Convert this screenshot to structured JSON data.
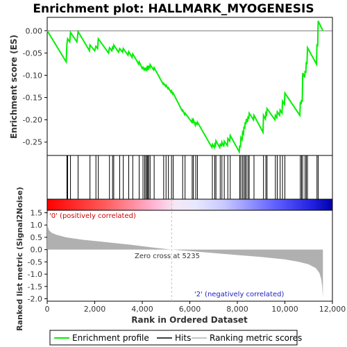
{
  "chart_data": {
    "type": "line",
    "title": "Enrichment plot: HALLMARK_MYOGENESIS",
    "xlabel": "Rank in Ordered Dataset",
    "ylabel_top": "Enrichment score (ES)",
    "ylabel_bottom": "Ranked list metric (Signal2Noise)",
    "xlim": [
      0,
      12000
    ],
    "x_ticks": [
      0,
      2000,
      4000,
      6000,
      8000,
      10000,
      12000
    ],
    "x_tick_labels": [
      "0",
      "2,000",
      "4,000",
      "6,000",
      "8,000",
      "10,000",
      "12,000"
    ],
    "es_ylim": [
      -0.28,
      0.03
    ],
    "es_ticks": [
      0.0,
      -0.05,
      -0.1,
      -0.15,
      -0.2,
      -0.25
    ],
    "es_tick_labels": [
      "0.00",
      "-0.05",
      "-0.10",
      "-0.15",
      "-0.20",
      "-0.25"
    ],
    "metric_ylim": [
      -2.1,
      1.6
    ],
    "metric_ticks": [
      1.5,
      1.0,
      0.5,
      0.0,
      -0.5,
      -1.0,
      -1.5,
      -2.0
    ],
    "metric_tick_labels": [
      "1.5",
      "1.0",
      "0.5",
      "0.0",
      "-0.5",
      "-1.0",
      "-1.5",
      "-2.0"
    ],
    "total_genes": 11600,
    "zero_cross": 5235,
    "annotations": {
      "positive": "'0' (positively correlated)",
      "negative": "'2' (negatively correlated)",
      "zero_cross": "Zero cross at 5235"
    },
    "hits": [
      830,
      860,
      980,
      1300,
      1800,
      2050,
      2150,
      2620,
      2750,
      2800,
      3050,
      3200,
      3430,
      3600,
      3870,
      4030,
      4100,
      4150,
      4200,
      4230,
      4270,
      4330,
      4500,
      4900,
      5000,
      5100,
      5230,
      5300,
      5700,
      5800,
      6100,
      6150,
      6250,
      6320,
      6950,
      7050,
      7100,
      7280,
      7350,
      7450,
      7600,
      7700,
      8100,
      8150,
      8220,
      8280,
      8330,
      8380,
      8450,
      8500,
      8700,
      9100,
      9200,
      9250,
      9600,
      9680,
      9800,
      9900,
      10000,
      10650,
      10700,
      10750,
      10850,
      10900,
      10950,
      11350,
      11400
    ],
    "es_curve": [
      [
        0,
        0.0
      ],
      [
        800,
        -0.07
      ],
      [
        830,
        -0.03
      ],
      [
        860,
        -0.018
      ],
      [
        950,
        -0.025
      ],
      [
        980,
        -0.004
      ],
      [
        1250,
        -0.025
      ],
      [
        1300,
        -0.002
      ],
      [
        1780,
        -0.045
      ],
      [
        1800,
        -0.032
      ],
      [
        2000,
        -0.045
      ],
      [
        2050,
        -0.035
      ],
      [
        2120,
        -0.04
      ],
      [
        2150,
        -0.018
      ],
      [
        2580,
        -0.05
      ],
      [
        2620,
        -0.038
      ],
      [
        2720,
        -0.045
      ],
      [
        2750,
        -0.035
      ],
      [
        2780,
        -0.042
      ],
      [
        2800,
        -0.032
      ],
      [
        3000,
        -0.048
      ],
      [
        3050,
        -0.04
      ],
      [
        3170,
        -0.048
      ],
      [
        3200,
        -0.04
      ],
      [
        3400,
        -0.055
      ],
      [
        3430,
        -0.047
      ],
      [
        3570,
        -0.06
      ],
      [
        3600,
        -0.052
      ],
      [
        3850,
        -0.075
      ],
      [
        3870,
        -0.07
      ],
      [
        4000,
        -0.085
      ],
      [
        4030,
        -0.082
      ],
      [
        4080,
        -0.088
      ],
      [
        4100,
        -0.085
      ],
      [
        4140,
        -0.088
      ],
      [
        4150,
        -0.085
      ],
      [
        4190,
        -0.088
      ],
      [
        4200,
        -0.083
      ],
      [
        4220,
        -0.085
      ],
      [
        4230,
        -0.082
      ],
      [
        4260,
        -0.085
      ],
      [
        4270,
        -0.08
      ],
      [
        4320,
        -0.083
      ],
      [
        4330,
        -0.076
      ],
      [
        4480,
        -0.088
      ],
      [
        4500,
        -0.083
      ],
      [
        4880,
        -0.12
      ],
      [
        4900,
        -0.118
      ],
      [
        4980,
        -0.125
      ],
      [
        5000,
        -0.122
      ],
      [
        5080,
        -0.13
      ],
      [
        5100,
        -0.128
      ],
      [
        5210,
        -0.138
      ],
      [
        5230,
        -0.135
      ],
      [
        5280,
        -0.142
      ],
      [
        5300,
        -0.14
      ],
      [
        5680,
        -0.18
      ],
      [
        5700,
        -0.178
      ],
      [
        5780,
        -0.188
      ],
      [
        5800,
        -0.185
      ],
      [
        6080,
        -0.205
      ],
      [
        6100,
        -0.2
      ],
      [
        6130,
        -0.205
      ],
      [
        6150,
        -0.2
      ],
      [
        6230,
        -0.212
      ],
      [
        6250,
        -0.207
      ],
      [
        6300,
        -0.21
      ],
      [
        6320,
        -0.205
      ],
      [
        6930,
        -0.262
      ],
      [
        6950,
        -0.255
      ],
      [
        7030,
        -0.262
      ],
      [
        7050,
        -0.255
      ],
      [
        7080,
        -0.258
      ],
      [
        7100,
        -0.247
      ],
      [
        7260,
        -0.262
      ],
      [
        7280,
        -0.255
      ],
      [
        7330,
        -0.258
      ],
      [
        7350,
        -0.25
      ],
      [
        7430,
        -0.26
      ],
      [
        7450,
        -0.248
      ],
      [
        7580,
        -0.258
      ],
      [
        7600,
        -0.242
      ],
      [
        7680,
        -0.248
      ],
      [
        7700,
        -0.235
      ],
      [
        8080,
        -0.272
      ],
      [
        8100,
        -0.258
      ],
      [
        8130,
        -0.262
      ],
      [
        8150,
        -0.24
      ],
      [
        8200,
        -0.245
      ],
      [
        8220,
        -0.228
      ],
      [
        8260,
        -0.232
      ],
      [
        8280,
        -0.215
      ],
      [
        8310,
        -0.22
      ],
      [
        8330,
        -0.205
      ],
      [
        8360,
        -0.21
      ],
      [
        8380,
        -0.198
      ],
      [
        8430,
        -0.205
      ],
      [
        8450,
        -0.192
      ],
      [
        8480,
        -0.198
      ],
      [
        8500,
        -0.185
      ],
      [
        8680,
        -0.2
      ],
      [
        8700,
        -0.19
      ],
      [
        9080,
        -0.228
      ],
      [
        9100,
        -0.19
      ],
      [
        9180,
        -0.198
      ],
      [
        9200,
        -0.185
      ],
      [
        9230,
        -0.188
      ],
      [
        9250,
        -0.175
      ],
      [
        9580,
        -0.2
      ],
      [
        9600,
        -0.19
      ],
      [
        9660,
        -0.195
      ],
      [
        9680,
        -0.182
      ],
      [
        9780,
        -0.19
      ],
      [
        9800,
        -0.178
      ],
      [
        9880,
        -0.185
      ],
      [
        9900,
        -0.158
      ],
      [
        9980,
        -0.165
      ],
      [
        10000,
        -0.14
      ],
      [
        10630,
        -0.19
      ],
      [
        10650,
        -0.16
      ],
      [
        10680,
        -0.165
      ],
      [
        10700,
        -0.155
      ],
      [
        10730,
        -0.16
      ],
      [
        10750,
        -0.095
      ],
      [
        10830,
        -0.105
      ],
      [
        10850,
        -0.09
      ],
      [
        10880,
        -0.095
      ],
      [
        10900,
        -0.07
      ],
      [
        10930,
        -0.075
      ],
      [
        10950,
        -0.038
      ],
      [
        11330,
        -0.075
      ],
      [
        11350,
        -0.03
      ],
      [
        11380,
        -0.035
      ],
      [
        11400,
        0.022
      ],
      [
        11600,
        0.0
      ]
    ],
    "metric_curve": [
      [
        0,
        1.5
      ],
      [
        20,
        0.95
      ],
      [
        80,
        0.78
      ],
      [
        200,
        0.68
      ],
      [
        400,
        0.6
      ],
      [
        800,
        0.5
      ],
      [
        1500,
        0.4
      ],
      [
        2500,
        0.3
      ],
      [
        3500,
        0.2
      ],
      [
        4500,
        0.08
      ],
      [
        5235,
        0.0
      ],
      [
        6000,
        -0.06
      ],
      [
        7000,
        -0.14
      ],
      [
        8000,
        -0.22
      ],
      [
        9000,
        -0.3
      ],
      [
        10000,
        -0.4
      ],
      [
        10600,
        -0.5
      ],
      [
        11000,
        -0.6
      ],
      [
        11300,
        -0.75
      ],
      [
        11450,
        -0.95
      ],
      [
        11530,
        -1.2
      ],
      [
        11570,
        -1.5
      ],
      [
        11600,
        -1.95
      ]
    ],
    "legend": [
      "Enrichment profile",
      "Hits",
      "Ranking metric scores"
    ],
    "colors": {
      "enrichment_profile": "#00ee00",
      "hits": "#000000",
      "metric": "#b0b0b0",
      "zero_cross_line": "#c0c0c0"
    }
  }
}
